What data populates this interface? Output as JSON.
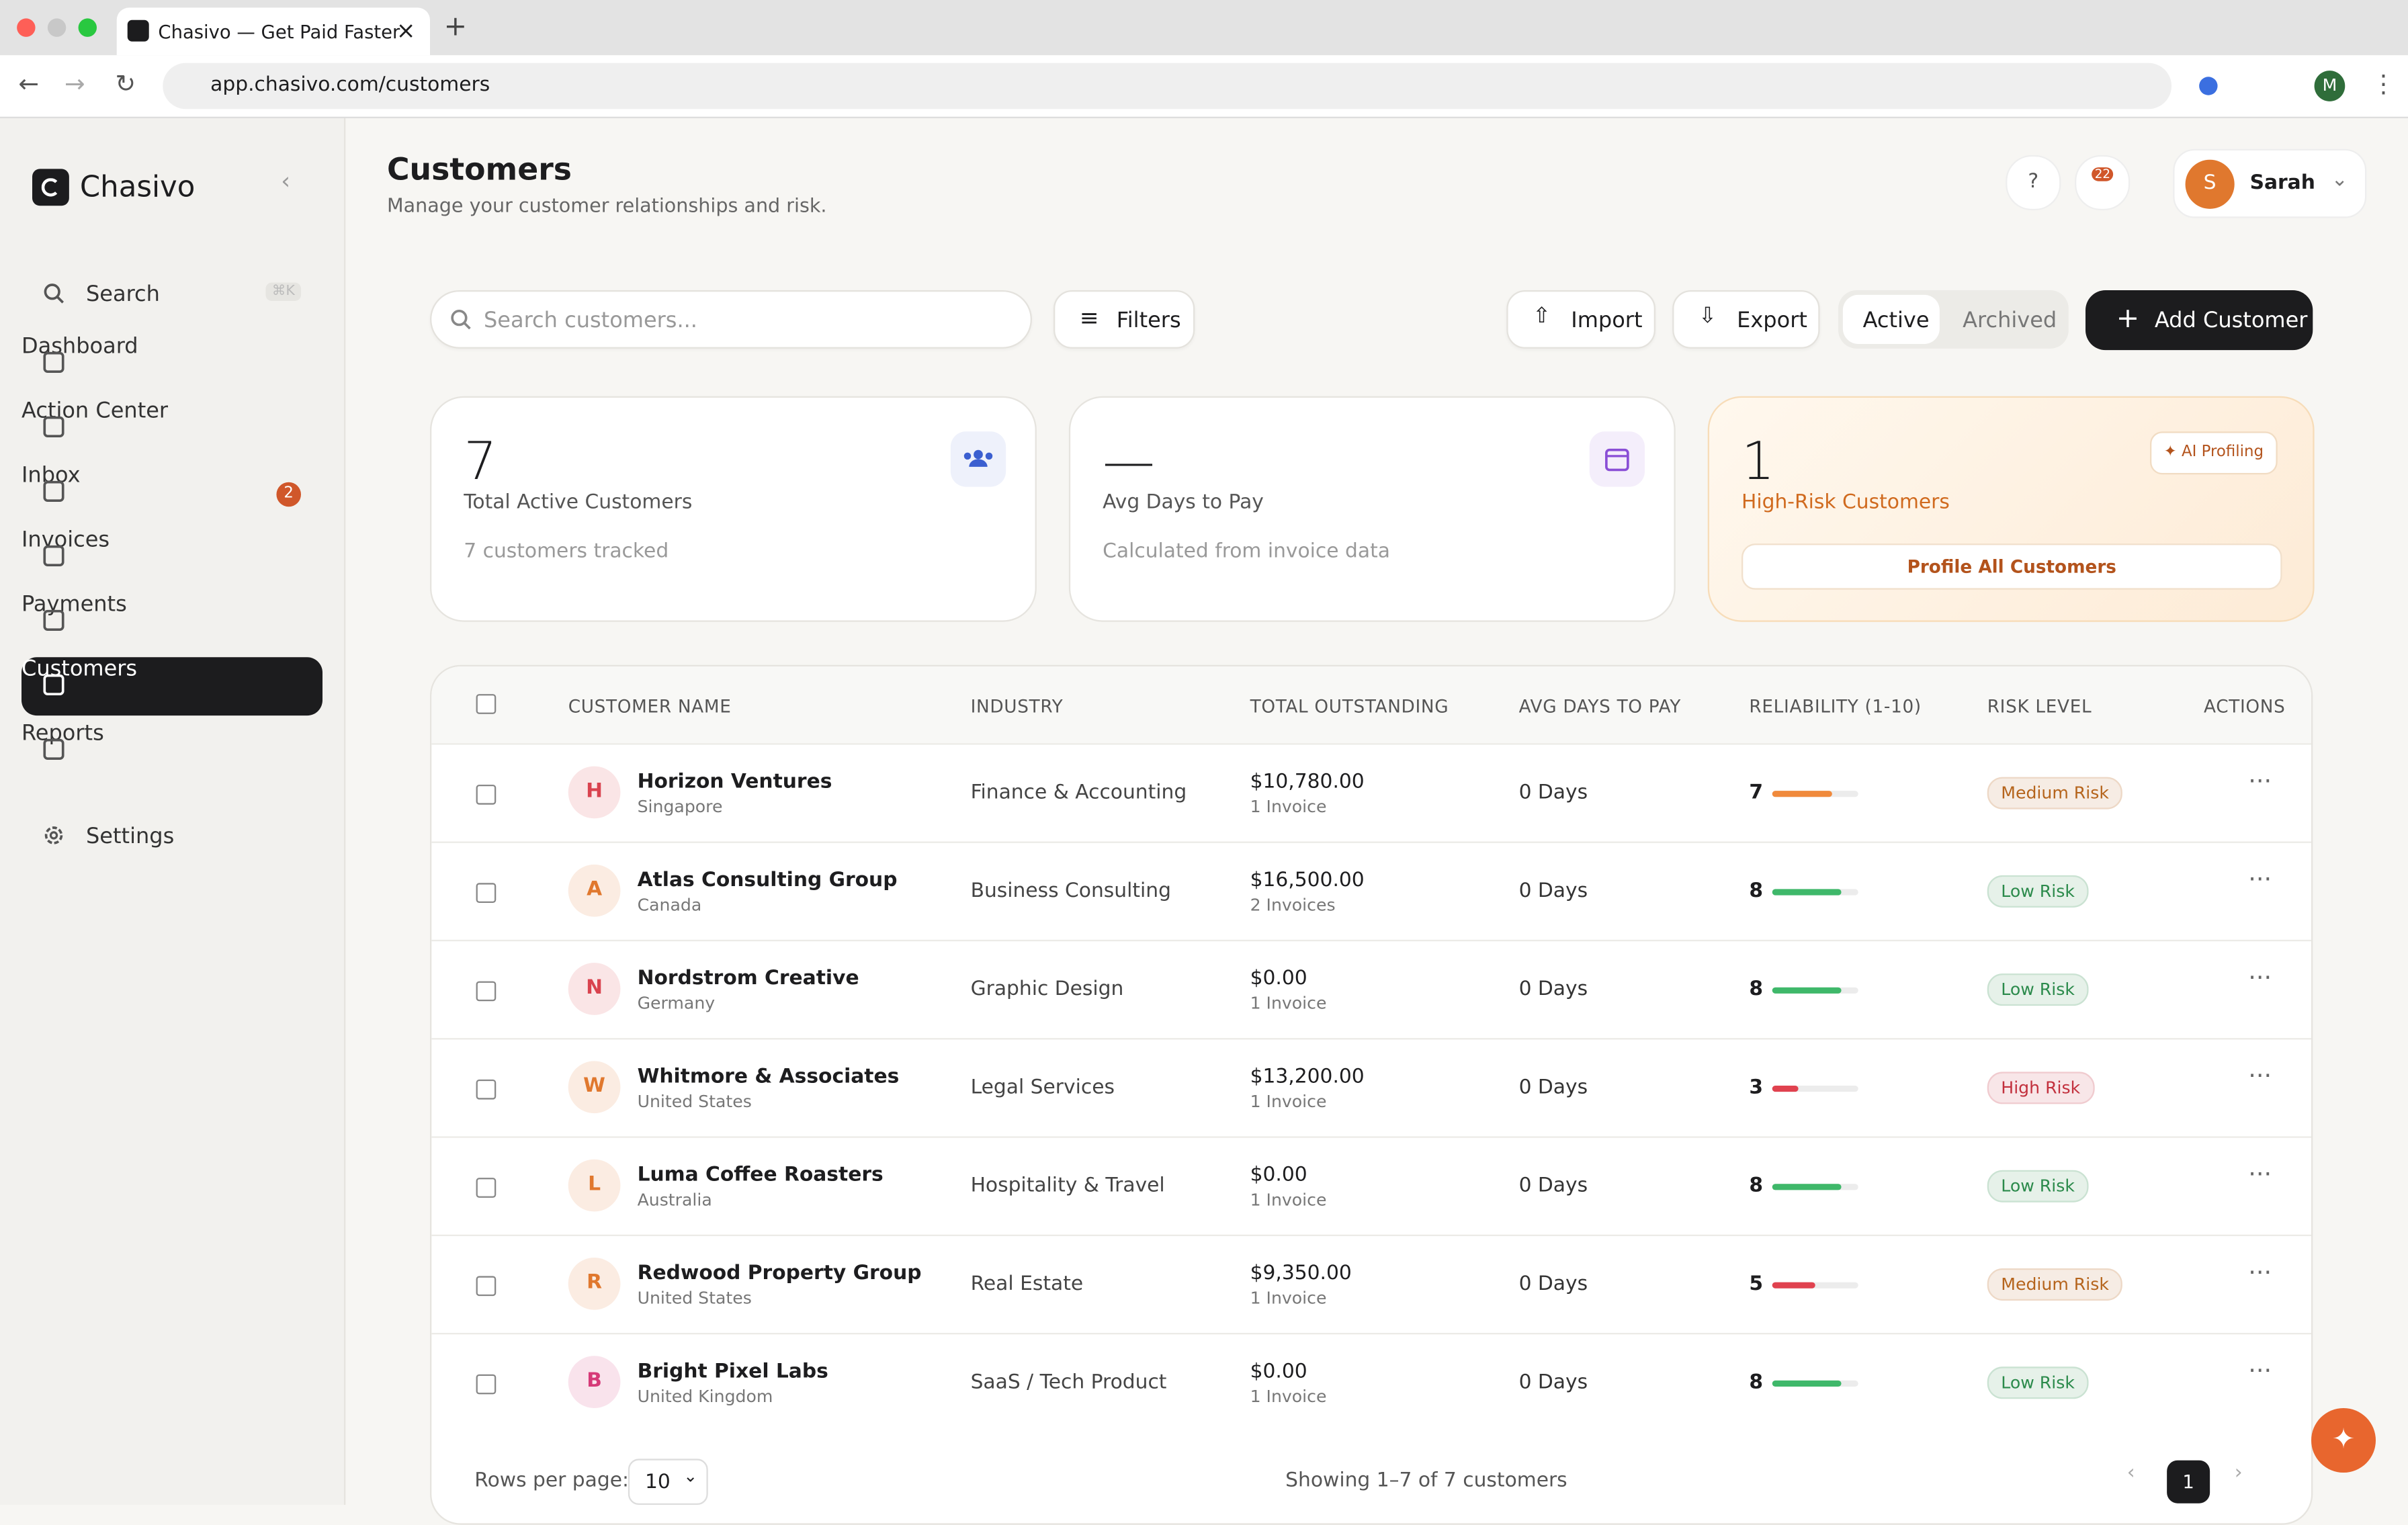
{
  "browser": {
    "tab_title": "Chasivo — Get Paid Faster",
    "url": "app.chasivo.com/customers",
    "profile_initial": "M"
  },
  "sidebar": {
    "brand": "Chasivo",
    "search": "Search",
    "shortcut": "⌘K",
    "nav": [
      {
        "label": "Dashboard"
      },
      {
        "label": "Action Center"
      },
      {
        "label": "Inbox",
        "badge": 2
      },
      {
        "label": "Invoices"
      },
      {
        "label": "Payments"
      },
      {
        "label": "Customers",
        "active": true
      },
      {
        "label": "Reports"
      }
    ],
    "settings": "Settings"
  },
  "header": {
    "title": "Customers",
    "subtitle": "Manage your customer relationships and risk.",
    "notifications": 22,
    "user_initial": "S",
    "user_name": "Sarah"
  },
  "toolbar": {
    "search_placeholder": "Search customers...",
    "filters": "Filters",
    "import": "Import",
    "export": "Export",
    "tabs": [
      "Active",
      "Archived"
    ],
    "add": "Add Customer"
  },
  "stats": [
    {
      "value": 7,
      "label": "Total Active Customers",
      "note": "7 customers tracked"
    },
    {
      "value": "—",
      "label": "Avg Days to Pay",
      "note": "Calculated from invoice data"
    },
    {
      "value": 1,
      "label": "High-Risk Customers",
      "badge": "AI Profiling",
      "action": "Profile All Customers"
    }
  ],
  "table": {
    "columns": [
      "CUSTOMER NAME",
      "INDUSTRY",
      "TOTAL OUTSTANDING",
      "AVG DAYS TO PAY",
      "RELIABILITY (1-10)",
      "RISK LEVEL",
      "ACTIONS"
    ],
    "rows": [
      {
        "initial": "H",
        "avatar_color": "#d9434f",
        "name": "Horizon Ventures",
        "location": "Singapore",
        "industry": "Finance & Accounting",
        "outstanding": "$10,780.00",
        "invoices": "1 Invoice",
        "avg_days": "0 Days",
        "reliability": 7,
        "bar_color": "#f08a3c",
        "risk": "Medium Risk",
        "risk_color": "#b5641c"
      },
      {
        "initial": "A",
        "avatar_color": "#e0782e",
        "name": "Atlas Consulting Group",
        "location": "Canada",
        "industry": "Business Consulting",
        "outstanding": "$16,500.00",
        "invoices": "2 Invoices",
        "avg_days": "0 Days",
        "reliability": 8,
        "bar_color": "#3fb86a",
        "risk": "Low Risk",
        "risk_color": "#2b8a4b"
      },
      {
        "initial": "N",
        "avatar_color": "#d9434f",
        "name": "Nordstrom Creative",
        "location": "Germany",
        "industry": "Graphic Design",
        "outstanding": "$0.00",
        "invoices": "1 Invoice",
        "avg_days": "0 Days",
        "reliability": 8,
        "bar_color": "#3fb86a",
        "risk": "Low Risk",
        "risk_color": "#2b8a4b"
      },
      {
        "initial": "W",
        "avatar_color": "#e0782e",
        "name": "Whitmore & Associates",
        "location": "United States",
        "industry": "Legal Services",
        "outstanding": "$13,200.00",
        "invoices": "1 Invoice",
        "avg_days": "0 Days",
        "reliability": 3,
        "bar_color": "#e0424f",
        "risk": "High Risk",
        "risk_color": "#c2303d"
      },
      {
        "initial": "L",
        "avatar_color": "#e0782e",
        "name": "Luma Coffee Roasters",
        "location": "Australia",
        "industry": "Hospitality & Travel",
        "outstanding": "$0.00",
        "invoices": "1 Invoice",
        "avg_days": "0 Days",
        "reliability": 8,
        "bar_color": "#3fb86a",
        "risk": "Low Risk",
        "risk_color": "#2b8a4b"
      },
      {
        "initial": "R",
        "avatar_color": "#e0782e",
        "name": "Redwood Property Group",
        "location": "United States",
        "industry": "Real Estate",
        "outstanding": "$9,350.00",
        "invoices": "1 Invoice",
        "avg_days": "0 Days",
        "reliability": 5,
        "bar_color": "#e0424f",
        "risk": "Medium Risk",
        "risk_color": "#b5641c"
      },
      {
        "initial": "B",
        "avatar_color": "#d63a78",
        "name": "Bright Pixel Labs",
        "location": "United Kingdom",
        "industry": "SaaS / Tech Product",
        "outstanding": "$0.00",
        "invoices": "1 Invoice",
        "avg_days": "0 Days",
        "reliability": 8,
        "bar_color": "#3fb86a",
        "risk": "Low Risk",
        "risk_color": "#2b8a4b"
      }
    ]
  },
  "pagination": {
    "rows_label": "Rows per page:",
    "rows_per_page": "10",
    "showing": "Showing 1–7 of 7 customers",
    "page": "1"
  }
}
